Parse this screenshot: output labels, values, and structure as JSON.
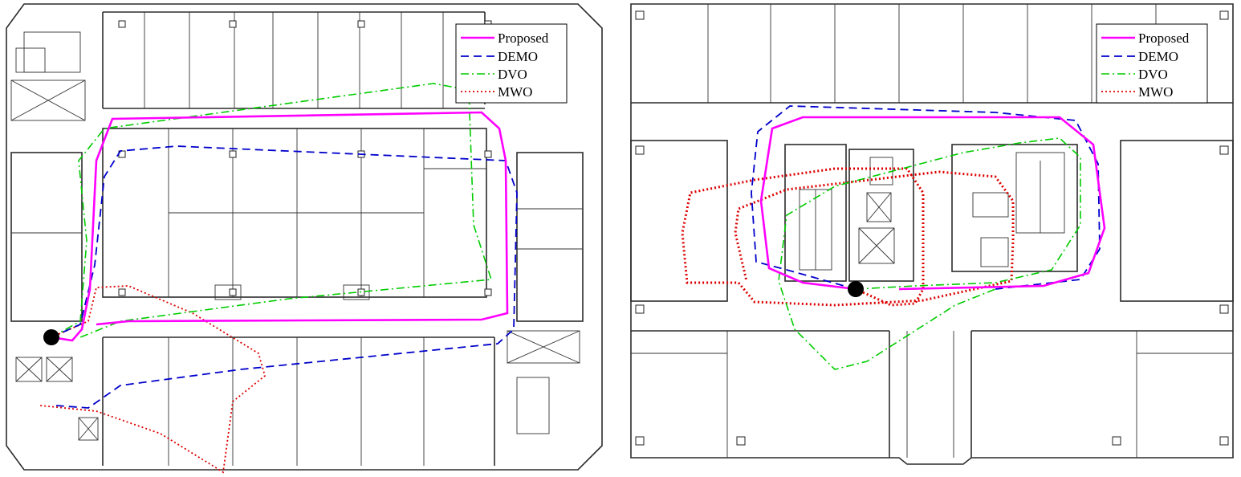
{
  "legend": {
    "items": [
      {
        "label": "Proposed",
        "color": "#ff00ff",
        "style": "solid"
      },
      {
        "label": "DEMO",
        "color": "#0000cc",
        "style": "dashed"
      },
      {
        "label": "DVO",
        "color": "#00cc00",
        "style": "dashdot"
      },
      {
        "label": "MWO",
        "color": "#dd0000",
        "style": "dotted"
      }
    ]
  },
  "maps": [
    {
      "name": "left-floor",
      "trajectories": {
        "Proposed": [
          [
            64,
            420
          ],
          [
            90,
            424
          ],
          [
            102,
            410
          ],
          [
            112,
            360
          ],
          [
            120,
            200
          ],
          [
            140,
            148
          ],
          [
            600,
            140
          ],
          [
            622,
            160
          ],
          [
            630,
            200
          ],
          [
            632,
            390
          ],
          [
            600,
            398
          ],
          [
            160,
            400
          ],
          [
            120,
            404
          ]
        ],
        "DEMO": [
          [
            64,
            420
          ],
          [
            100,
            404
          ],
          [
            118,
            330
          ],
          [
            130,
            220
          ],
          [
            150,
            188
          ],
          [
            220,
            182
          ],
          [
            630,
            200
          ],
          [
            644,
            240
          ],
          [
            640,
            410
          ],
          [
            620,
            428
          ],
          [
            300,
            460
          ],
          [
            150,
            480
          ],
          [
            110,
            508
          ],
          [
            70,
            505
          ]
        ],
        "DVO": [
          [
            64,
            420
          ],
          [
            100,
            400
          ],
          [
            108,
            300
          ],
          [
            98,
            200
          ],
          [
            130,
            160
          ],
          [
            540,
            104
          ],
          [
            584,
            112
          ],
          [
            590,
            280
          ],
          [
            612,
            348
          ],
          [
            360,
            372
          ],
          [
            150,
            400
          ],
          [
            100,
            420
          ]
        ],
        "MWO": [
          [
            64,
            420
          ],
          [
            110,
            400
          ],
          [
            120,
            358
          ],
          [
            160,
            356
          ],
          [
            240,
            390
          ],
          [
            322,
            440
          ],
          [
            330,
            468
          ],
          [
            290,
            500
          ],
          [
            278,
            588
          ],
          [
            200,
            540
          ],
          [
            120,
            512
          ],
          [
            50,
            505
          ]
        ]
      },
      "start_marker": [
        64,
        420
      ]
    },
    {
      "name": "right-floor",
      "trajectories": {
        "Proposed": [
          [
            1066,
            360
          ],
          [
            1000,
            352
          ],
          [
            958,
            334
          ],
          [
            948,
            250
          ],
          [
            962,
            160
          ],
          [
            1000,
            146
          ],
          [
            1320,
            146
          ],
          [
            1362,
            180
          ],
          [
            1376,
            284
          ],
          [
            1356,
            340
          ],
          [
            1300,
            356
          ],
          [
            1120,
            360
          ]
        ],
        "DEMO": [
          [
            1066,
            360
          ],
          [
            980,
            336
          ],
          [
            942,
            326
          ],
          [
            936,
            240
          ],
          [
            944,
            164
          ],
          [
            984,
            132
          ],
          [
            1240,
            140
          ],
          [
            1340,
            150
          ],
          [
            1368,
            204
          ],
          [
            1370,
            310
          ],
          [
            1346,
            348
          ],
          [
            1240,
            360
          ]
        ],
        "DVO": [
          [
            1066,
            360
          ],
          [
            1140,
            356
          ],
          [
            1240,
            352
          ],
          [
            1310,
            336
          ],
          [
            1346,
            280
          ],
          [
            1346,
            196
          ],
          [
            1320,
            172
          ],
          [
            1270,
            178
          ],
          [
            1200,
            190
          ],
          [
            1040,
            232
          ],
          [
            980,
            268
          ],
          [
            970,
            350
          ],
          [
            990,
            410
          ],
          [
            1040,
            460
          ],
          [
            1080,
            450
          ],
          [
            1190,
            380
          ],
          [
            1240,
            360
          ]
        ],
        "MWO": [
          [
            1066,
            360
          ],
          [
            1110,
            380
          ],
          [
            1140,
            378
          ],
          [
            1150,
            360
          ],
          [
            1150,
            300
          ],
          [
            1150,
            240
          ],
          [
            1130,
            210
          ],
          [
            1040,
            210
          ],
          [
            940,
            224
          ],
          [
            860,
            240
          ],
          [
            850,
            290
          ],
          [
            856,
            352
          ],
          [
            920,
            352
          ],
          [
            940,
            376
          ],
          [
            1040,
            380
          ],
          [
            1150,
            374
          ],
          [
            1260,
            350
          ],
          [
            1262,
            300
          ],
          [
            1262,
            250
          ],
          [
            1240,
            220
          ],
          [
            1170,
            214
          ],
          [
            980,
            236
          ],
          [
            920,
            260
          ],
          [
            916,
            290
          ],
          [
            930,
            350
          ]
        ]
      },
      "start_marker": [
        1066,
        360
      ]
    }
  ]
}
